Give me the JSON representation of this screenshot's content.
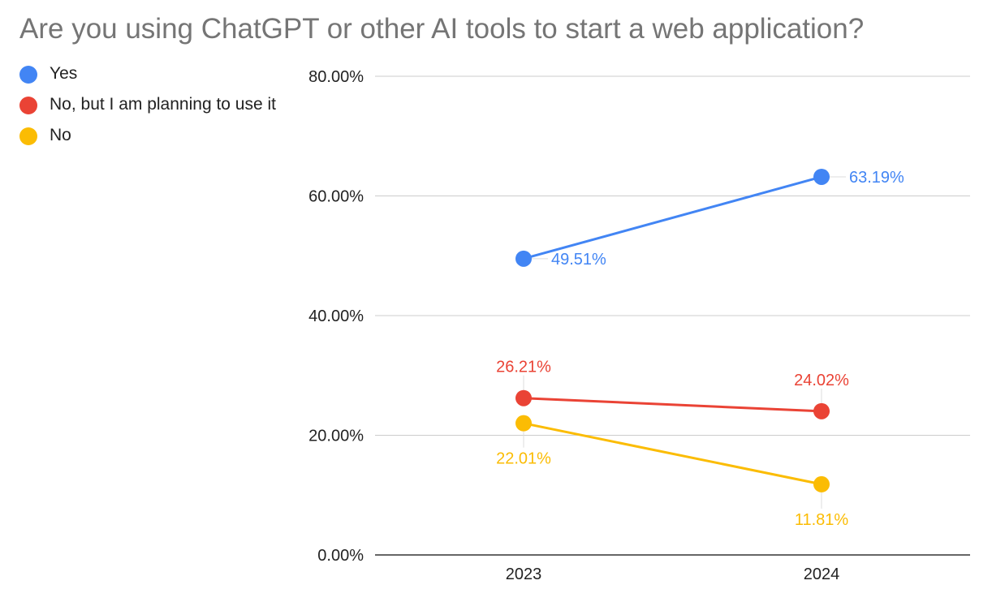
{
  "chart_data": {
    "type": "line",
    "title": "Are you using ChatGPT or other AI tools to start a web application?",
    "xlabel": "",
    "ylabel": "",
    "categories": [
      "2023",
      "2024"
    ],
    "ylim": [
      0,
      80
    ],
    "yticks": [
      0,
      20,
      40,
      60,
      80
    ],
    "ytick_labels": [
      "0.00%",
      "20.00%",
      "40.00%",
      "60.00%",
      "80.00%"
    ],
    "grid": true,
    "legend_position": "left",
    "series": [
      {
        "name": "Yes",
        "color": "#4285F4",
        "values": [
          49.51,
          63.19
        ],
        "labels": [
          "49.51%",
          "63.19%"
        ],
        "label_positions": [
          "right",
          "right"
        ]
      },
      {
        "name": "No, but I am planning to use it",
        "color": "#EA4335",
        "values": [
          26.21,
          24.02
        ],
        "labels": [
          "26.21%",
          "24.02%"
        ],
        "label_positions": [
          "above",
          "above"
        ]
      },
      {
        "name": "No",
        "color": "#FBBC04",
        "values": [
          22.01,
          11.81
        ],
        "labels": [
          "22.01%",
          "11.81%"
        ],
        "label_positions": [
          "below",
          "below"
        ]
      }
    ]
  }
}
